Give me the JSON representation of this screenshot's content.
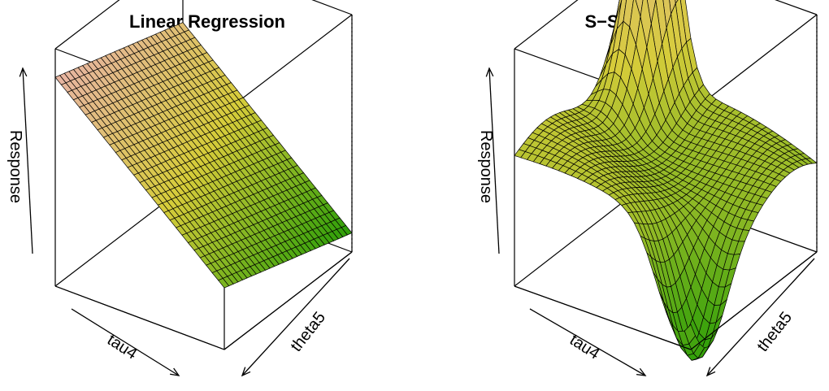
{
  "chart_data": [
    {
      "type": "surface",
      "title": "Linear Regression",
      "xlabel": "tau4",
      "ylabel": "theta5",
      "zlabel": "Response",
      "surface": "linear plane sloping down along tau4",
      "colors": {
        "high": "#e8b4a4",
        "mid": "#d6cc3a",
        "low": "#2b9e08"
      }
    },
    {
      "type": "surface",
      "title": "S−SODA",
      "xlabel": "tau4",
      "ylabel": "theta5",
      "zlabel": "Response",
      "surface": "nonlinear surface with a peak near the back-left corner and a trough near the front-right",
      "colors": {
        "high": "#e8b4a4",
        "mid": "#d6cc3a",
        "low": "#2b9e08"
      }
    }
  ]
}
